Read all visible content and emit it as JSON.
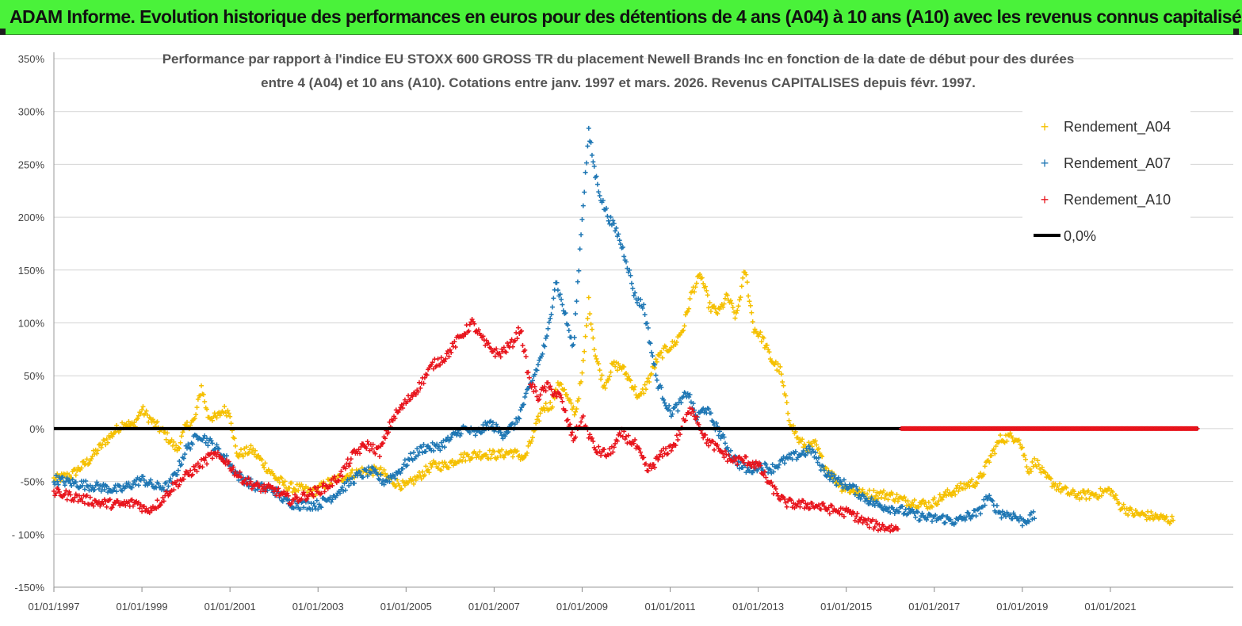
{
  "banner": {
    "title": "ADAM Informe. Evolution historique des performances en euros pour des détentions de 4 ans (A04) à 10 ans (A10) avec les revenus connus capitalisés",
    "color": "#4af23a"
  },
  "chart_data": {
    "type": "scatter",
    "title_line1": "Performance par rapport à l'indice EU STOXX 600 GROSS TR  du placement Newell Brands Inc en fonction de la date de début pour des durées",
    "title_line2": "entre 4 (A04) et 10 ans (A10). Cotations entre janv. 1997 et mars. 2026. Revenus CAPITALISES depuis févr. 1997.",
    "xlim": [
      1997.0,
      2023.0
    ],
    "ylim": [
      -150,
      350
    ],
    "y_ticks": [
      {
        "value": 350,
        "label": "350%"
      },
      {
        "value": 300,
        "label": "300%"
      },
      {
        "value": 250,
        "label": "250%"
      },
      {
        "value": 200,
        "label": "200%"
      },
      {
        "value": 150,
        "label": "150%"
      },
      {
        "value": 100,
        "label": "100%"
      },
      {
        "value": 50,
        "label": "50%"
      },
      {
        "value": 0,
        "label": "0%"
      },
      {
        "value": -50,
        "label": "-50%"
      },
      {
        "value": -100,
        "label": "- 100%"
      },
      {
        "value": -150,
        "label": "-150%"
      }
    ],
    "x_ticks": [
      {
        "value": 1997,
        "label": "01/01/1997"
      },
      {
        "value": 1999,
        "label": "01/01/1999"
      },
      {
        "value": 2001,
        "label": "01/01/2001"
      },
      {
        "value": 2003,
        "label": "01/01/2003"
      },
      {
        "value": 2005,
        "label": "01/01/2005"
      },
      {
        "value": 2007,
        "label": "01/01/2007"
      },
      {
        "value": 2009,
        "label": "01/01/2009"
      },
      {
        "value": 2011,
        "label": "01/01/2011"
      },
      {
        "value": 2013,
        "label": "01/01/2013"
      },
      {
        "value": 2015,
        "label": "01/01/2015"
      },
      {
        "value": 2017,
        "label": "01/01/2017"
      },
      {
        "value": 2019,
        "label": "01/01/2019"
      },
      {
        "value": 2021,
        "label": "01/01/2021"
      }
    ],
    "series": [
      {
        "name": "Rendement_A04",
        "color": "#f5c000",
        "marker": "+",
        "points": [
          [
            1997.0,
            -48
          ],
          [
            1997.4,
            -44
          ],
          [
            1997.8,
            -30
          ],
          [
            1998.1,
            -15
          ],
          [
            1998.4,
            -2
          ],
          [
            1998.6,
            6
          ],
          [
            1998.8,
            2
          ],
          [
            1999.0,
            18
          ],
          [
            1999.2,
            8
          ],
          [
            1999.5,
            -4
          ],
          [
            1999.8,
            -20
          ],
          [
            2000.0,
            2
          ],
          [
            2000.2,
            8
          ],
          [
            2000.35,
            40
          ],
          [
            2000.5,
            12
          ],
          [
            2000.7,
            10
          ],
          [
            2000.85,
            18
          ],
          [
            2001.0,
            15
          ],
          [
            2001.15,
            -25
          ],
          [
            2001.5,
            -20
          ],
          [
            2001.8,
            -35
          ],
          [
            2002.0,
            -45
          ],
          [
            2002.3,
            -55
          ],
          [
            2002.6,
            -57
          ],
          [
            2002.9,
            -60
          ],
          [
            2003.2,
            -52
          ],
          [
            2003.6,
            -45
          ],
          [
            2004.0,
            -40
          ],
          [
            2004.4,
            -40
          ],
          [
            2004.7,
            -50
          ],
          [
            2005.0,
            -55
          ],
          [
            2005.3,
            -45
          ],
          [
            2005.6,
            -35
          ],
          [
            2005.9,
            -35
          ],
          [
            2006.2,
            -28
          ],
          [
            2006.5,
            -25
          ],
          [
            2006.8,
            -24
          ],
          [
            2007.1,
            -25
          ],
          [
            2007.4,
            -22
          ],
          [
            2007.7,
            -28
          ],
          [
            2007.9,
            -5
          ],
          [
            2008.1,
            20
          ],
          [
            2008.3,
            22
          ],
          [
            2008.5,
            45
          ],
          [
            2008.7,
            25
          ],
          [
            2008.85,
            15
          ],
          [
            2009.0,
            50
          ],
          [
            2009.15,
            120
          ],
          [
            2009.3,
            70
          ],
          [
            2009.5,
            40
          ],
          [
            2009.7,
            60
          ],
          [
            2009.9,
            58
          ],
          [
            2010.1,
            45
          ],
          [
            2010.3,
            28
          ],
          [
            2010.5,
            45
          ],
          [
            2010.7,
            65
          ],
          [
            2010.9,
            75
          ],
          [
            2011.1,
            80
          ],
          [
            2011.3,
            95
          ],
          [
            2011.5,
            130
          ],
          [
            2011.7,
            145
          ],
          [
            2011.9,
            115
          ],
          [
            2012.1,
            110
          ],
          [
            2012.3,
            125
          ],
          [
            2012.5,
            105
          ],
          [
            2012.7,
            150
          ],
          [
            2012.9,
            95
          ],
          [
            2013.1,
            85
          ],
          [
            2013.3,
            65
          ],
          [
            2013.5,
            55
          ],
          [
            2013.7,
            10
          ],
          [
            2013.9,
            -10
          ],
          [
            2014.1,
            -18
          ],
          [
            2014.3,
            -15
          ],
          [
            2014.5,
            -35
          ],
          [
            2014.7,
            -45
          ],
          [
            2014.9,
            -55
          ],
          [
            2015.1,
            -58
          ],
          [
            2015.4,
            -62
          ],
          [
            2015.7,
            -62
          ],
          [
            2016.0,
            -63
          ],
          [
            2016.3,
            -68
          ],
          [
            2016.6,
            -70
          ],
          [
            2016.9,
            -72
          ],
          [
            2017.2,
            -64
          ],
          [
            2017.5,
            -58
          ],
          [
            2017.8,
            -52
          ],
          [
            2018.0,
            -50
          ],
          [
            2018.15,
            -38
          ],
          [
            2018.3,
            -25
          ],
          [
            2018.5,
            -10
          ],
          [
            2018.7,
            -8
          ],
          [
            2018.9,
            -8
          ],
          [
            2019.0,
            -20
          ],
          [
            2019.15,
            -40
          ],
          [
            2019.3,
            -30
          ],
          [
            2019.5,
            -45
          ],
          [
            2019.8,
            -55
          ],
          [
            2020.1,
            -62
          ],
          [
            2020.4,
            -63
          ],
          [
            2020.7,
            -62
          ],
          [
            2021.0,
            -58
          ],
          [
            2021.2,
            -72
          ],
          [
            2021.5,
            -80
          ],
          [
            2021.8,
            -82
          ],
          [
            2022.1,
            -84
          ],
          [
            2022.3,
            -86
          ],
          [
            2022.45,
            -87
          ]
        ]
      },
      {
        "name": "Rendement_A07",
        "color": "#1f77b4",
        "marker": "+",
        "points": [
          [
            1997.0,
            -48
          ],
          [
            1997.5,
            -52
          ],
          [
            1998.0,
            -55
          ],
          [
            1998.5,
            -58
          ],
          [
            1999.0,
            -48
          ],
          [
            1999.3,
            -55
          ],
          [
            1999.6,
            -55
          ],
          [
            1999.8,
            -40
          ],
          [
            2000.0,
            -20
          ],
          [
            2000.3,
            -5
          ],
          [
            2000.6,
            -15
          ],
          [
            2000.9,
            -28
          ],
          [
            2001.2,
            -45
          ],
          [
            2001.6,
            -55
          ],
          [
            2002.0,
            -58
          ],
          [
            2002.3,
            -70
          ],
          [
            2002.6,
            -72
          ],
          [
            2003.0,
            -72
          ],
          [
            2003.3,
            -65
          ],
          [
            2003.6,
            -55
          ],
          [
            2003.9,
            -45
          ],
          [
            2004.2,
            -40
          ],
          [
            2004.5,
            -50
          ],
          [
            2004.8,
            -42
          ],
          [
            2005.1,
            -28
          ],
          [
            2005.4,
            -18
          ],
          [
            2005.7,
            -18
          ],
          [
            2006.0,
            -10
          ],
          [
            2006.3,
            0
          ],
          [
            2006.6,
            -5
          ],
          [
            2006.9,
            5
          ],
          [
            2007.2,
            -5
          ],
          [
            2007.5,
            5
          ],
          [
            2007.8,
            38
          ],
          [
            2008.0,
            60
          ],
          [
            2008.2,
            85
          ],
          [
            2008.4,
            140
          ],
          [
            2008.6,
            110
          ],
          [
            2008.8,
            75
          ],
          [
            2009.0,
            200
          ],
          [
            2009.15,
            280
          ],
          [
            2009.3,
            240
          ],
          [
            2009.45,
            215
          ],
          [
            2009.6,
            200
          ],
          [
            2009.8,
            185
          ],
          [
            2010.0,
            160
          ],
          [
            2010.2,
            125
          ],
          [
            2010.4,
            115
          ],
          [
            2010.55,
            80
          ],
          [
            2010.7,
            45
          ],
          [
            2010.85,
            30
          ],
          [
            2011.0,
            15
          ],
          [
            2011.2,
            22
          ],
          [
            2011.4,
            35
          ],
          [
            2011.6,
            10
          ],
          [
            2011.8,
            20
          ],
          [
            2012.0,
            5
          ],
          [
            2012.2,
            -10
          ],
          [
            2012.4,
            -25
          ],
          [
            2012.6,
            -35
          ],
          [
            2012.8,
            -40
          ],
          [
            2013.0,
            -35
          ],
          [
            2013.3,
            -38
          ],
          [
            2013.6,
            -30
          ],
          [
            2013.9,
            -25
          ],
          [
            2014.2,
            -20
          ],
          [
            2014.5,
            -40
          ],
          [
            2014.8,
            -50
          ],
          [
            2015.1,
            -55
          ],
          [
            2015.4,
            -65
          ],
          [
            2015.7,
            -72
          ],
          [
            2016.0,
            -75
          ],
          [
            2016.3,
            -78
          ],
          [
            2016.6,
            -82
          ],
          [
            2016.9,
            -85
          ],
          [
            2017.2,
            -85
          ],
          [
            2017.5,
            -88
          ],
          [
            2017.8,
            -82
          ],
          [
            2018.0,
            -80
          ],
          [
            2018.2,
            -65
          ],
          [
            2018.5,
            -80
          ],
          [
            2018.8,
            -82
          ],
          [
            2019.0,
            -88
          ],
          [
            2019.3,
            -82
          ]
        ]
      },
      {
        "name": "Rendement_A10",
        "color": "#e8141c",
        "marker": "+",
        "points": [
          [
            1997.0,
            -60
          ],
          [
            1997.5,
            -65
          ],
          [
            1998.0,
            -70
          ],
          [
            1998.5,
            -72
          ],
          [
            1998.9,
            -70
          ],
          [
            1999.1,
            -78
          ],
          [
            1999.4,
            -70
          ],
          [
            1999.7,
            -55
          ],
          [
            2000.0,
            -45
          ],
          [
            2000.3,
            -35
          ],
          [
            2000.6,
            -25
          ],
          [
            2000.9,
            -30
          ],
          [
            2001.2,
            -45
          ],
          [
            2001.6,
            -55
          ],
          [
            2002.0,
            -58
          ],
          [
            2002.4,
            -68
          ],
          [
            2002.8,
            -62
          ],
          [
            2003.2,
            -55
          ],
          [
            2003.5,
            -45
          ],
          [
            2003.8,
            -25
          ],
          [
            2004.1,
            -15
          ],
          [
            2004.4,
            -22
          ],
          [
            2004.7,
            10
          ],
          [
            2005.0,
            25
          ],
          [
            2005.3,
            40
          ],
          [
            2005.6,
            60
          ],
          [
            2005.9,
            68
          ],
          [
            2006.2,
            85
          ],
          [
            2006.5,
            100
          ],
          [
            2006.8,
            80
          ],
          [
            2007.1,
            70
          ],
          [
            2007.4,
            80
          ],
          [
            2007.6,
            95
          ],
          [
            2007.8,
            45
          ],
          [
            2008.0,
            30
          ],
          [
            2008.2,
            40
          ],
          [
            2008.5,
            30
          ],
          [
            2008.8,
            -10
          ],
          [
            2009.0,
            10
          ],
          [
            2009.3,
            -20
          ],
          [
            2009.6,
            -25
          ],
          [
            2009.9,
            -5
          ],
          [
            2010.2,
            -15
          ],
          [
            2010.5,
            -40
          ],
          [
            2010.8,
            -25
          ],
          [
            2011.1,
            -15
          ],
          [
            2011.3,
            5
          ],
          [
            2011.5,
            20
          ],
          [
            2011.8,
            -10
          ],
          [
            2012.1,
            -20
          ],
          [
            2012.4,
            -30
          ],
          [
            2012.7,
            -30
          ],
          [
            2013.0,
            -35
          ],
          [
            2013.3,
            -55
          ],
          [
            2013.6,
            -70
          ],
          [
            2013.9,
            -72
          ],
          [
            2014.2,
            -72
          ],
          [
            2014.5,
            -75
          ],
          [
            2014.8,
            -78
          ],
          [
            2015.1,
            -80
          ],
          [
            2015.4,
            -88
          ],
          [
            2015.7,
            -92
          ],
          [
            2016.0,
            -94
          ],
          [
            2016.2,
            -95
          ]
        ]
      },
      {
        "name": "0,0%",
        "color": "#000000",
        "marker": "line",
        "points": [
          [
            1997.0,
            0
          ],
          [
            2023.0,
            0
          ]
        ]
      }
    ],
    "extra_red_zero": {
      "from": 2016.25,
      "to": 2023.0,
      "value": 0
    },
    "legend_position": "top-right"
  }
}
